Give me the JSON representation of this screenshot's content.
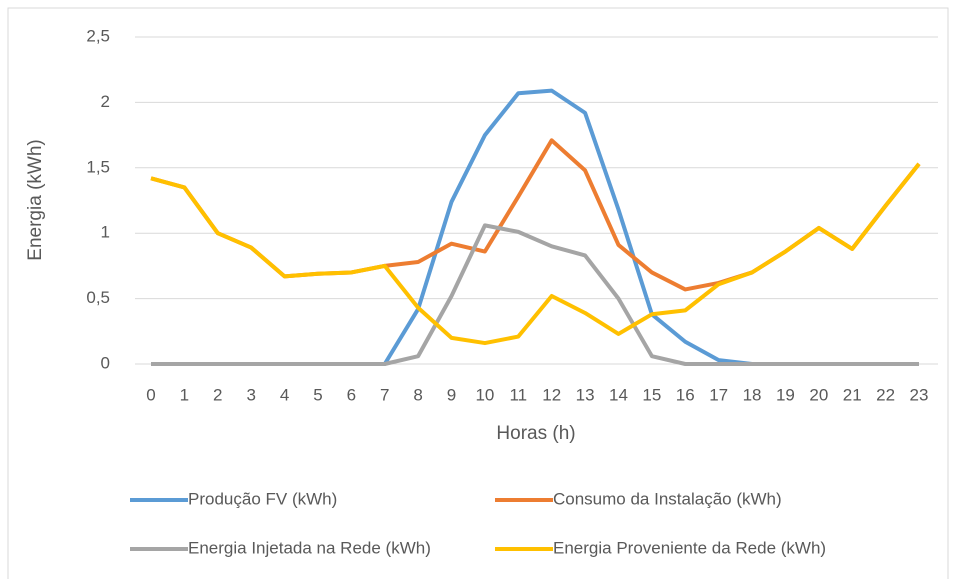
{
  "chart_data": {
    "type": "line",
    "xlabel": "Horas (h)",
    "ylabel": "Energia (kWh)",
    "categories": [
      0,
      1,
      2,
      3,
      4,
      5,
      6,
      7,
      8,
      9,
      10,
      11,
      12,
      13,
      14,
      15,
      16,
      17,
      18,
      19,
      20,
      21,
      22,
      23
    ],
    "series": [
      {
        "name": "Produção FV (kWh)",
        "color": "#5b9bd5",
        "values": [
          0,
          0,
          0,
          0,
          0,
          0,
          0,
          0,
          0.42,
          1.24,
          1.75,
          2.07,
          2.09,
          1.92,
          1.18,
          0.38,
          0.17,
          0.03,
          0,
          0,
          0,
          0,
          0,
          0
        ]
      },
      {
        "name": "Consumo da Instalação (kWh)",
        "color": "#ed7d31",
        "values": [
          1.42,
          1.35,
          1.0,
          0.89,
          0.67,
          0.69,
          0.7,
          0.75,
          0.78,
          0.92,
          0.86,
          1.28,
          1.71,
          1.48,
          0.91,
          0.7,
          0.57,
          0.62,
          0.7,
          0.86,
          1.04,
          0.88,
          1.21,
          1.53
        ]
      },
      {
        "name": "Energia Injetada na Rede (kWh)",
        "color": "#a5a5a5",
        "values": [
          0,
          0,
          0,
          0,
          0,
          0,
          0,
          0,
          0.06,
          0.52,
          1.06,
          1.01,
          0.9,
          0.83,
          0.5,
          0.06,
          0,
          0,
          0,
          0,
          0,
          0,
          0,
          0
        ]
      },
      {
        "name": "Energia Proveniente da Rede (kWh)",
        "color": "#ffc000",
        "values": [
          1.42,
          1.35,
          1.0,
          0.89,
          0.67,
          0.69,
          0.7,
          0.75,
          0.43,
          0.2,
          0.16,
          0.21,
          0.52,
          0.39,
          0.23,
          0.38,
          0.41,
          0.61,
          0.7,
          0.86,
          1.04,
          0.88,
          1.21,
          1.53
        ]
      }
    ],
    "ylim": [
      0,
      2.5
    ],
    "yticks": [
      0,
      {
        "value": 0.5,
        "label": "0,5"
      },
      1,
      {
        "value": 1.5,
        "label": "1,5"
      },
      2,
      {
        "value": 2.5,
        "label": "2,5"
      }
    ],
    "grid": true,
    "legend": "bottom"
  }
}
